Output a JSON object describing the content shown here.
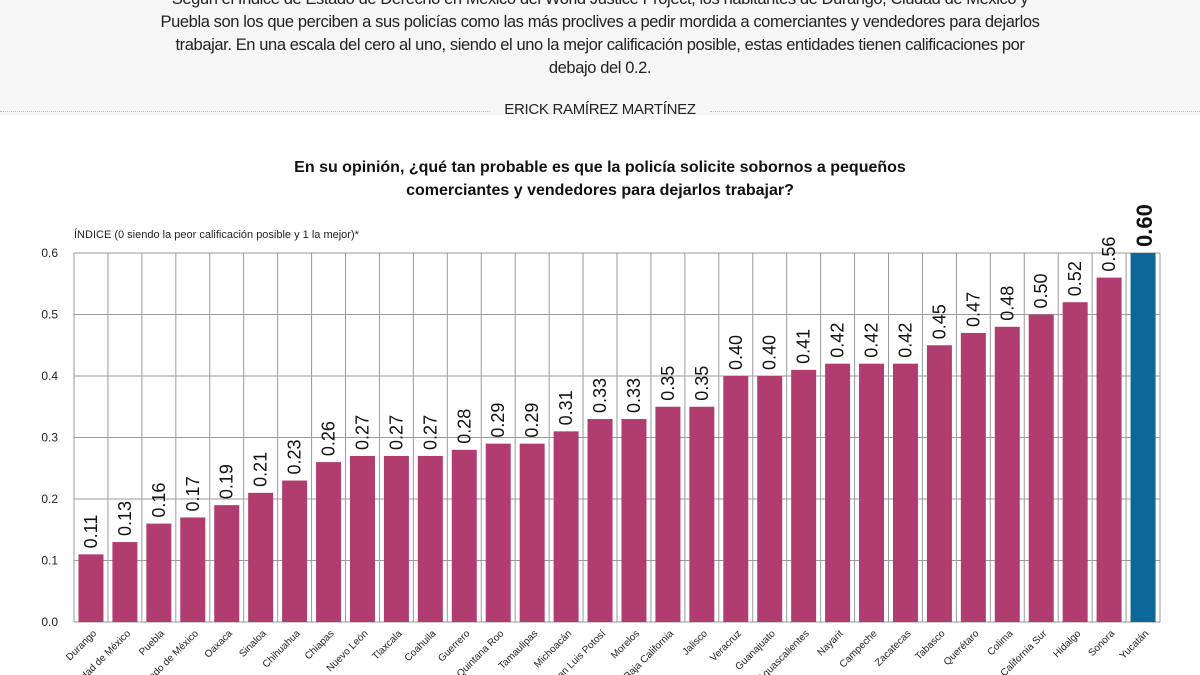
{
  "intro": "Según el Índice de Estado de Derecho en México del World Justice Project, los habitantes de Durango, Ciudad de México y Puebla son los que perciben a sus policías como las más proclives a pedir mordida a comerciantes y vendedores para dejarlos trabajar. En una escala del cero al uno, siendo el uno la mejor calificación posible, estas entidades tienen calificaciones por debajo del 0.2.",
  "byline": "ERICK RAMÍREZ MARTÍNEZ",
  "chart_data": {
    "type": "bar",
    "title": "En su opinión, ¿qué tan probable es que la policía solicite sobornos a pequeños comerciantes y vendedores para dejarlos trabajar?",
    "ylabel": "ÍNDICE (0 siendo la peor calificación posible y 1 la mejor)*",
    "xlabel": "",
    "ylim": [
      0,
      0.6
    ],
    "yticks": [
      "0.0",
      "0.1",
      "0.2",
      "0.3",
      "0.4",
      "0.5",
      "0.6"
    ],
    "grid": true,
    "categories": [
      "Durango",
      "Ciudad de México",
      "Puebla",
      "Estado de México",
      "Oaxaca",
      "Sinaloa",
      "Chihuahua",
      "Chiapas",
      "Nuevo León",
      "Tlaxcala",
      "Coahuila",
      "Guerrero",
      "Quintana Roo",
      "Tamaulipas",
      "Michoacán",
      "San Luis Potosí",
      "Morelos",
      "Baja California",
      "Jalisco",
      "Veracruz",
      "Guanajuato",
      "Aguascalientes",
      "Nayarit",
      "Campeche",
      "Zacatecas",
      "Tabasco",
      "Querétaro",
      "Colima",
      "Baja California Sur",
      "Hidalgo",
      "Sonora",
      "Yucatán"
    ],
    "values": [
      0.11,
      0.13,
      0.16,
      0.17,
      0.19,
      0.21,
      0.23,
      0.26,
      0.27,
      0.27,
      0.27,
      0.28,
      0.29,
      0.29,
      0.31,
      0.33,
      0.33,
      0.35,
      0.35,
      0.4,
      0.4,
      0.41,
      0.42,
      0.42,
      0.42,
      0.45,
      0.47,
      0.48,
      0.5,
      0.52,
      0.56,
      0.6
    ],
    "labels": [
      "0.11",
      "0.13",
      "0.16",
      "0.17",
      "0.19",
      "0.21",
      "0.23",
      "0.26",
      "0.27",
      "0.27",
      "0.27",
      "0.28",
      "0.29",
      "0.29",
      "0.31",
      "0.33",
      "0.33",
      "0.35",
      "0.35",
      "0.40",
      "0.40",
      "0.41",
      "0.42",
      "0.42",
      "0.42",
      "0.45",
      "0.47",
      "0.48",
      "0.50",
      "0.52",
      "0.56",
      "0.60"
    ],
    "highlight": "Yucatán",
    "colors": {
      "bar": "#b13d70",
      "highlight": "#0b6898",
      "grid": "#9a9a9a"
    }
  }
}
